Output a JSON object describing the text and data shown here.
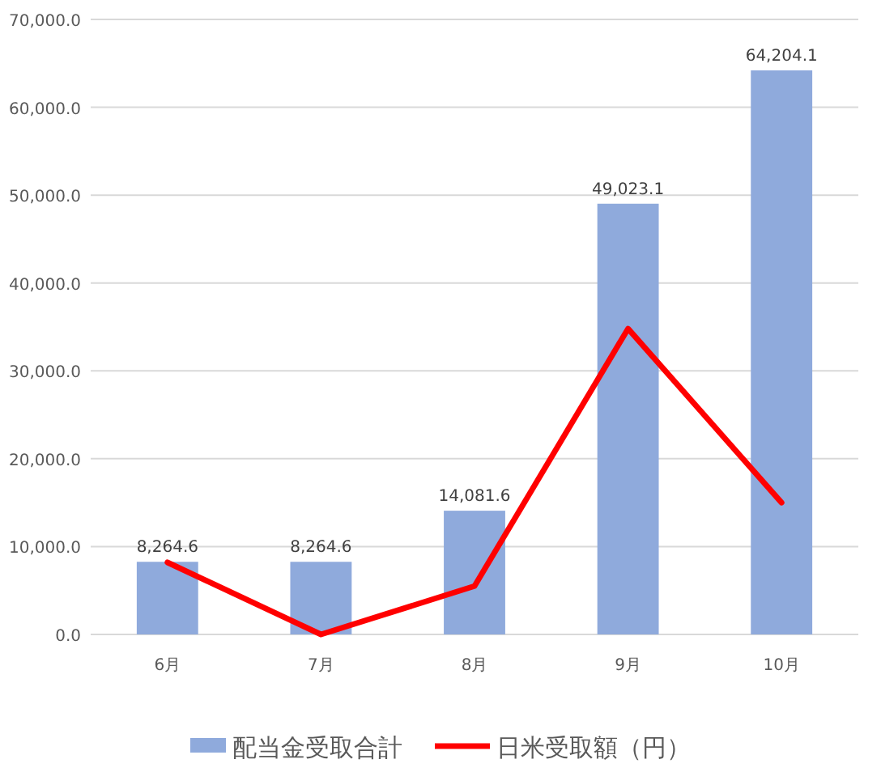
{
  "chart_data": {
    "type": "bar",
    "categories": [
      "6月",
      "7月",
      "8月",
      "9月",
      "10月"
    ],
    "series": [
      {
        "name": "配当金受取合計",
        "color": "#8faadc",
        "values": [
          8264.6,
          8264.6,
          14081.6,
          49023.1,
          64204.1
        ],
        "value_labels": [
          "8,264.6",
          "8,264.6",
          "14,081.6",
          "49,023.1",
          "64,204.1"
        ]
      },
      {
        "name": "日米受取額（円）",
        "type": "line",
        "color": "#ff0000",
        "values": [
          8200,
          0,
          5500,
          34800,
          15000
        ]
      }
    ],
    "ylim": [
      0,
      70000
    ],
    "yticks": [
      {
        "value": 0,
        "label": "0.0"
      },
      {
        "value": 10000,
        "label": "10,000.0"
      },
      {
        "value": 20000,
        "label": "20,000.0"
      },
      {
        "value": 30000,
        "label": "30,000.0"
      },
      {
        "value": 40000,
        "label": "40,000.0"
      },
      {
        "value": 50000,
        "label": "50,000.0"
      },
      {
        "value": 60000,
        "label": "60,000.0"
      },
      {
        "value": 70000,
        "label": "70,000.0"
      }
    ],
    "grid": "y",
    "legend": "bottom",
    "marker": "none",
    "line_style": "solid"
  }
}
